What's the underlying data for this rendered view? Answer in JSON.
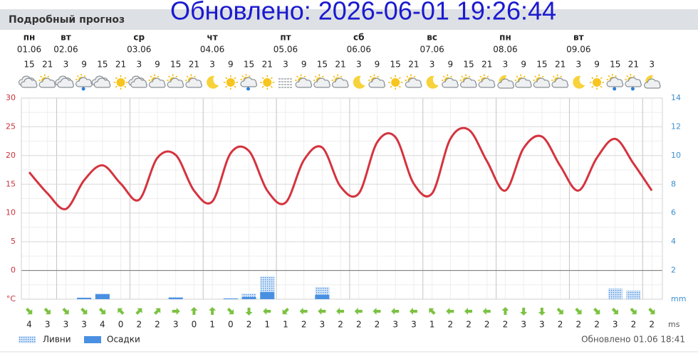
{
  "header": {
    "title": "Подробный прогноз"
  },
  "overlay": "Обновлено: 2026-06-01 19:26:44",
  "days": [
    {
      "name": "пн",
      "date": "01.06"
    },
    {
      "name": "вт",
      "date": "02.06"
    },
    {
      "name": "ср",
      "date": "03.06"
    },
    {
      "name": "чт",
      "date": "04.06"
    },
    {
      "name": "пт",
      "date": "05.06"
    },
    {
      "name": "сб",
      "date": "06.06"
    },
    {
      "name": "вс",
      "date": "07.06"
    },
    {
      "name": "пн",
      "date": "08.06"
    },
    {
      "name": "вт",
      "date": "09.06"
    }
  ],
  "chart_data": {
    "type": "line",
    "categories": [
      "15",
      "21",
      "3",
      "9",
      "15",
      "21",
      "3",
      "9",
      "15",
      "21",
      "3",
      "9",
      "15",
      "21",
      "3",
      "9",
      "15",
      "21",
      "3",
      "9",
      "15",
      "21",
      "3",
      "9",
      "15",
      "21",
      "3",
      "9",
      "15",
      "21",
      "3",
      "9",
      "15",
      "21",
      "3"
    ],
    "values": [
      17.1,
      13.4,
      10.7,
      15.7,
      18.3,
      15.1,
      12.3,
      19.6,
      20.1,
      13.9,
      12.0,
      20.4,
      20.8,
      13.9,
      11.8,
      19.2,
      21.4,
      14.6,
      13.4,
      22.3,
      23.2,
      15.1,
      13.4,
      22.9,
      24.5,
      19.0,
      13.9,
      21.3,
      23.3,
      18.2,
      13.9,
      19.6,
      22.9,
      18.6,
      13.9
    ],
    "color": "#d4343f",
    "ylim": [
      -5,
      30
    ],
    "yticks": [
      {
        "value": -5,
        "label": "°C"
      },
      0,
      5,
      10,
      15,
      20,
      25,
      30
    ],
    "y2lim": [
      0,
      14
    ],
    "y2ticks": [
      {
        "value": 0,
        "label": "mm"
      },
      2,
      4,
      6,
      8,
      10,
      12,
      14
    ],
    "grid": true,
    "series": [
      {
        "name": "Ливни",
        "color": "#4a90e2",
        "axis": "y2",
        "values": [
          0,
          0,
          0,
          0,
          0.4,
          0,
          0,
          0,
          0.15,
          0,
          0,
          0,
          0.4,
          1.6,
          0,
          0,
          0.85,
          0,
          0,
          0,
          0,
          0,
          0,
          0,
          0,
          0,
          0,
          0,
          0,
          0,
          0,
          0,
          0.75,
          0.6,
          0
        ]
      },
      {
        "name": "Осадки",
        "color": "#4a90e2",
        "axis": "y2",
        "values": [
          0,
          0,
          0,
          0.1,
          0.35,
          0,
          0,
          0,
          0.1,
          0,
          0,
          0.05,
          0.15,
          0.5,
          0,
          0,
          0.3,
          0,
          0,
          0,
          0,
          0,
          0,
          0,
          0,
          0,
          0,
          0,
          0,
          0,
          0,
          0,
          0,
          0,
          0
        ]
      }
    ]
  },
  "wind": {
    "values": [
      4,
      3,
      3,
      3,
      4,
      0,
      2,
      2,
      3,
      0,
      1,
      0,
      2,
      1,
      1,
      2,
      3,
      2,
      2,
      2,
      3,
      3,
      1,
      2,
      2,
      2,
      2,
      3,
      3,
      2,
      2,
      2,
      3,
      2,
      2
    ],
    "unit": "ms"
  },
  "footer": "Обновлено 01.06 18:41"
}
